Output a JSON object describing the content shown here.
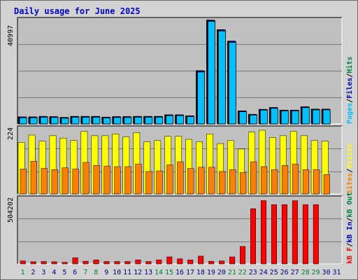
{
  "title": "Daily usage for June 2025",
  "colors": {
    "background": "#d2d2d2",
    "plot": "#c0c0c0",
    "hits": "#008040",
    "files": "#0000c0",
    "pages": "#00c0ff",
    "visits": "#ffff00",
    "sites": "#ff8000",
    "kbytes_out": "#008040",
    "kbytes_in": "#0000c0",
    "kbytes_f": "#ff0000",
    "title": "#0000c8",
    "weekend_day": "#008040",
    "weekday": "#000080"
  },
  "chart_data": [
    {
      "type": "bar",
      "panel": "hits-files-pages",
      "axis_label": "40997",
      "ymax": 40997,
      "y_axis_side": "left",
      "legend": {
        "position": "right-vertical",
        "entries": [
          {
            "key": "pages",
            "text": "Pages"
          },
          {
            "key": "files",
            "text": "Files"
          },
          {
            "key": "hits",
            "text": "Hits"
          }
        ]
      },
      "categories": [
        "1",
        "2",
        "3",
        "4",
        "5",
        "6",
        "7",
        "8",
        "9",
        "10",
        "11",
        "12",
        "13",
        "14",
        "15",
        "16",
        "17",
        "18",
        "19",
        "20",
        "21",
        "22",
        "23",
        "24",
        "25",
        "26",
        "27",
        "28",
        "29",
        "30",
        "31"
      ],
      "series": [
        {
          "name": "Hits",
          "key": "hits",
          "values": [
            2700,
            2700,
            2900,
            2800,
            2500,
            2900,
            2900,
            2900,
            2600,
            2800,
            2800,
            2900,
            2900,
            2900,
            3500,
            3500,
            3100,
            20500,
            40000,
            36300,
            31900,
            5000,
            3700,
            5600,
            6300,
            5300,
            5300,
            6600,
            5700,
            5700,
            null
          ]
        },
        {
          "name": "Files",
          "key": "files",
          "values": [
            2650,
            2650,
            2850,
            2750,
            2450,
            2850,
            2850,
            2850,
            2550,
            2750,
            2750,
            2850,
            2850,
            2850,
            3450,
            3450,
            3050,
            20400,
            39900,
            36200,
            31800,
            4950,
            3650,
            5550,
            6250,
            5250,
            5250,
            6550,
            5650,
            5650,
            null
          ]
        },
        {
          "name": "Pages",
          "key": "pages",
          "values": [
            2400,
            2400,
            2600,
            2500,
            2200,
            2600,
            2600,
            2600,
            2300,
            2500,
            2500,
            2600,
            2600,
            2600,
            3200,
            3200,
            2800,
            20000,
            39500,
            35800,
            31400,
            4700,
            3400,
            5300,
            6000,
            5000,
            5000,
            6300,
            5400,
            5400,
            null
          ]
        }
      ]
    },
    {
      "type": "bar",
      "panel": "visits-sites",
      "axis_label": "224",
      "ymax": 224,
      "y_axis_side": "left",
      "legend": {
        "position": "right-vertical",
        "entries": [
          {
            "key": "sites",
            "text": "Sites"
          },
          {
            "key": "visits",
            "text": "Visits"
          }
        ]
      },
      "categories": [
        "1",
        "2",
        "3",
        "4",
        "5",
        "6",
        "7",
        "8",
        "9",
        "10",
        "11",
        "12",
        "13",
        "14",
        "15",
        "16",
        "17",
        "18",
        "19",
        "20",
        "21",
        "22",
        "23",
        "24",
        "25",
        "26",
        "27",
        "28",
        "29",
        "30",
        "31"
      ],
      "series": [
        {
          "name": "Visits",
          "key": "visits",
          "values": [
            170,
            194,
            174,
            192,
            184,
            176,
            206,
            192,
            192,
            198,
            188,
            202,
            172,
            176,
            190,
            190,
            180,
            172,
            198,
            166,
            176,
            148,
            204,
            210,
            186,
            192,
            206,
            192,
            176,
            174,
            null
          ]
        },
        {
          "name": "Sites",
          "key": "sites",
          "values": [
            82,
            108,
            84,
            80,
            86,
            82,
            104,
            94,
            92,
            90,
            90,
            98,
            74,
            76,
            96,
            106,
            84,
            88,
            88,
            74,
            80,
            70,
            106,
            90,
            80,
            94,
            98,
            80,
            80,
            64,
            null
          ]
        }
      ]
    },
    {
      "type": "bar",
      "panel": "kbytes",
      "axis_label": "504202",
      "ymax": 504202,
      "y_axis_side": "left",
      "legend": {
        "position": "right-vertical",
        "entries": [
          {
            "key": "kbytes_f",
            "text": "kB F"
          },
          {
            "key": "kbytes_in",
            "text": "kB In"
          },
          {
            "key": "kbytes_out",
            "text": "kB Out"
          }
        ]
      },
      "categories": [
        "1",
        "2",
        "3",
        "4",
        "5",
        "6",
        "7",
        "8",
        "9",
        "10",
        "11",
        "12",
        "13",
        "14",
        "15",
        "16",
        "17",
        "18",
        "19",
        "20",
        "21",
        "22",
        "23",
        "24",
        "25",
        "26",
        "27",
        "28",
        "29",
        "30",
        "31"
      ],
      "series": [
        {
          "name": "kB F",
          "key": "kbytes_f",
          "values": [
            22000,
            16000,
            18000,
            16000,
            12000,
            46000,
            20000,
            30000,
            18000,
            18000,
            18000,
            30000,
            18000,
            30000,
            52000,
            38000,
            30000,
            58000,
            20000,
            22000,
            52000,
            130000,
            410000,
            470000,
            440000,
            440000,
            470000,
            440000,
            440000,
            0,
            null
          ]
        }
      ]
    }
  ],
  "x_axis": {
    "days": [
      {
        "label": "1",
        "weekend": true
      },
      {
        "label": "2",
        "weekend": false
      },
      {
        "label": "3",
        "weekend": false
      },
      {
        "label": "4",
        "weekend": false
      },
      {
        "label": "5",
        "weekend": false
      },
      {
        "label": "6",
        "weekend": false
      },
      {
        "label": "7",
        "weekend": true
      },
      {
        "label": "8",
        "weekend": true
      },
      {
        "label": "9",
        "weekend": false
      },
      {
        "label": "10",
        "weekend": false
      },
      {
        "label": "11",
        "weekend": false
      },
      {
        "label": "12",
        "weekend": false
      },
      {
        "label": "13",
        "weekend": false
      },
      {
        "label": "14",
        "weekend": true
      },
      {
        "label": "15",
        "weekend": true
      },
      {
        "label": "16",
        "weekend": false
      },
      {
        "label": "17",
        "weekend": false
      },
      {
        "label": "18",
        "weekend": false
      },
      {
        "label": "19",
        "weekend": false
      },
      {
        "label": "20",
        "weekend": false
      },
      {
        "label": "21",
        "weekend": true
      },
      {
        "label": "22",
        "weekend": true
      },
      {
        "label": "23",
        "weekend": false
      },
      {
        "label": "24",
        "weekend": false
      },
      {
        "label": "25",
        "weekend": false
      },
      {
        "label": "26",
        "weekend": false
      },
      {
        "label": "27",
        "weekend": false
      },
      {
        "label": "28",
        "weekend": true
      },
      {
        "label": "29",
        "weekend": true
      },
      {
        "label": "30",
        "weekend": false
      },
      {
        "label": "31",
        "weekend": false
      }
    ]
  }
}
